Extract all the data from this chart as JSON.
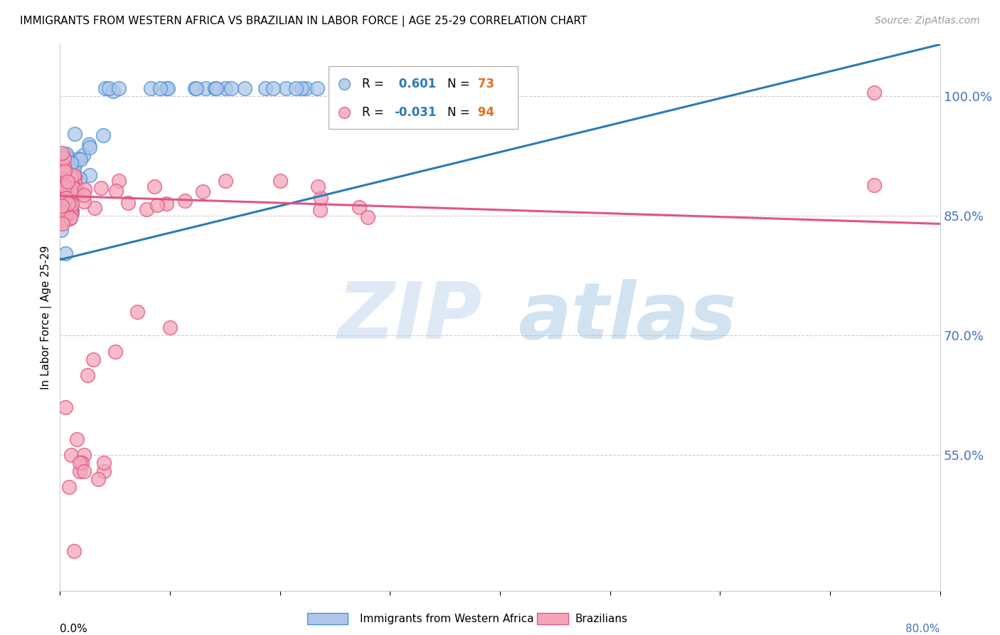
{
  "title": "IMMIGRANTS FROM WESTERN AFRICA VS BRAZILIAN IN LABOR FORCE | AGE 25-29 CORRELATION CHART",
  "source": "Source: ZipAtlas.com",
  "ylabel": "In Labor Force | Age 25-29",
  "xmin": 0.0,
  "xmax": 0.8,
  "ymin": 0.38,
  "ymax": 1.065,
  "yticks": [
    0.55,
    0.7,
    0.85,
    1.0
  ],
  "ytick_labels": [
    "55.0%",
    "70.0%",
    "85.0%",
    "100.0%"
  ],
  "color_blue": "#aec7e8",
  "color_pink": "#f4a6b8",
  "color_blue_edge": "#4a90d9",
  "color_pink_edge": "#e05585",
  "color_blue_line": "#2c7bb6",
  "color_pink_line": "#e05585",
  "watermark_zip": "ZIP",
  "watermark_atlas": "atlas",
  "blue_R": 0.601,
  "blue_N": 73,
  "pink_R": -0.031,
  "pink_N": 94,
  "blue_line_x0": 0.0,
  "blue_line_y0": 0.795,
  "blue_line_x1": 0.8,
  "blue_line_y1": 1.065,
  "pink_line_x0": 0.0,
  "pink_line_y0": 0.875,
  "pink_line_x1": 0.8,
  "pink_line_y1": 0.84
}
